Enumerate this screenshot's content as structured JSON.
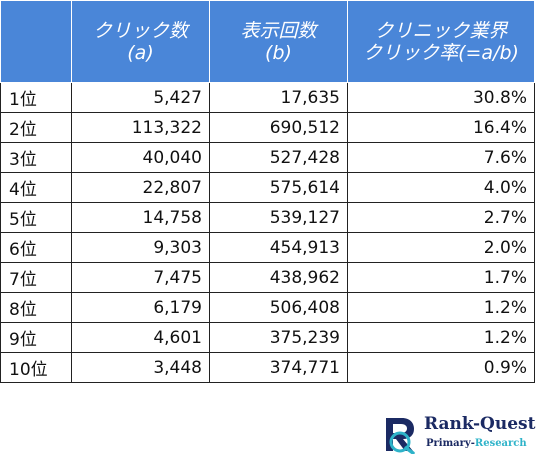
{
  "table": {
    "headers": [
      {
        "lines": [
          ""
        ]
      },
      {
        "lines": [
          "クリック数",
          "(a)"
        ]
      },
      {
        "lines": [
          "表示回数",
          "(b)"
        ]
      },
      {
        "lines": [
          "クリニック業界",
          "クリック率(=a/b)"
        ]
      }
    ],
    "rows": [
      {
        "rank": "1位",
        "clicks": "5,427",
        "impressions": "17,635",
        "ctr": "30.8%"
      },
      {
        "rank": "2位",
        "clicks": "113,322",
        "impressions": "690,512",
        "ctr": "16.4%"
      },
      {
        "rank": "3位",
        "clicks": "40,040",
        "impressions": "527,428",
        "ctr": "7.6%"
      },
      {
        "rank": "4位",
        "clicks": "22,807",
        "impressions": "575,614",
        "ctr": "4.0%"
      },
      {
        "rank": "5位",
        "clicks": "14,758",
        "impressions": "539,127",
        "ctr": "2.7%"
      },
      {
        "rank": "6位",
        "clicks": "9,303",
        "impressions": "454,913",
        "ctr": "2.0%"
      },
      {
        "rank": "7位",
        "clicks": "7,475",
        "impressions": "438,962",
        "ctr": "1.7%"
      },
      {
        "rank": "8位",
        "clicks": "6,179",
        "impressions": "506,408",
        "ctr": "1.2%"
      },
      {
        "rank": "9位",
        "clicks": "4,601",
        "impressions": "375,239",
        "ctr": "1.2%"
      },
      {
        "rank": "10位",
        "clicks": "3,448",
        "impressions": "374,771",
        "ctr": "0.9%"
      }
    ]
  },
  "logo": {
    "name": "Rank-Quest",
    "sub_primary": "Primary-",
    "sub_research": "Research",
    "icon": "rq-monogram-icon",
    "colors": {
      "navy": "#1b2a63",
      "teal": "#2eb3c9"
    }
  },
  "colors": {
    "header_bg": "#4a86d8",
    "header_text": "#ffffff",
    "grid": "#222222"
  }
}
